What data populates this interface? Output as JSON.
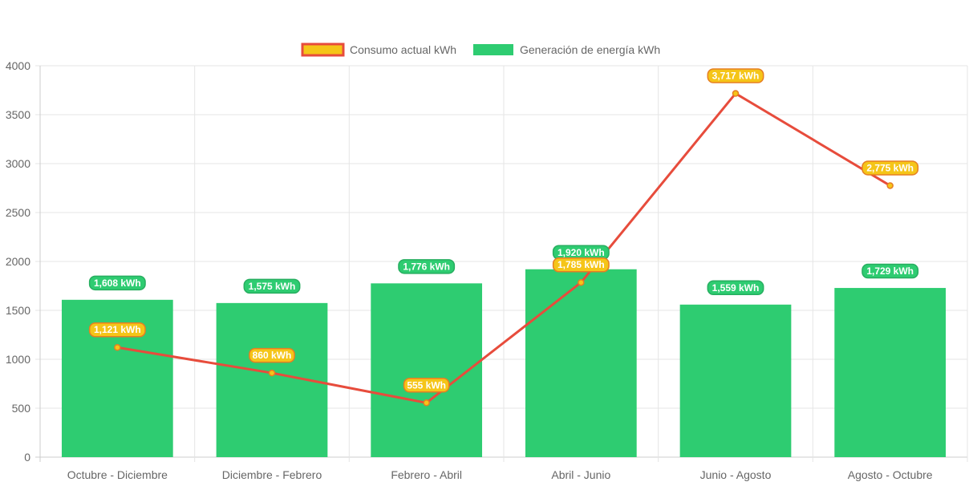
{
  "chart_data": {
    "type": "bar",
    "categories": [
      "Octubre - Diciembre",
      "Diciembre - Febrero",
      "Febrero - Abril",
      "Abril - Junio",
      "Junio - Agosto",
      "Agosto - Octubre"
    ],
    "series": [
      {
        "name": "Consumo actual kWh",
        "type": "line",
        "values": [
          1121,
          860,
          555,
          1785,
          3717,
          2775
        ],
        "labels": [
          "1,121 kWh",
          "860 kWh",
          "555 kWh",
          "1,785 kWh",
          "3,717 kWh",
          "2,775 kWh"
        ],
        "color": "#e74c3c",
        "fill": "#f5c518"
      },
      {
        "name": "Generación de energía kWh",
        "type": "bar",
        "values": [
          1608,
          1575,
          1776,
          1920,
          1559,
          1729
        ],
        "labels": [
          "1,608 kWh",
          "1,575 kWh",
          "1,776 kWh",
          "1,920 kWh",
          "1,559 kWh",
          "1,729 kWh"
        ],
        "color": "#2ecc71"
      }
    ],
    "ylim": [
      0,
      4000
    ],
    "yticks": [
      "0",
      "500",
      "1000",
      "1500",
      "2000",
      "2500",
      "3000",
      "3500",
      "4000"
    ],
    "ytick_values": [
      0,
      500,
      1000,
      1500,
      2000,
      2500,
      3000,
      3500,
      4000
    ],
    "grid": true,
    "legend_position": "top"
  }
}
